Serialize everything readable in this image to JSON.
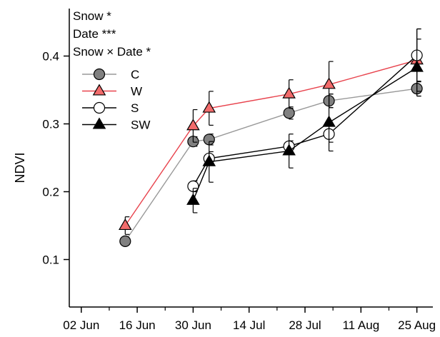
{
  "chart_data": {
    "type": "line",
    "title": "",
    "xlabel": "",
    "ylabel": "NDVI",
    "ylim": [
      0.03,
      0.47
    ],
    "yticks": [
      0.1,
      0.2,
      0.3,
      0.4
    ],
    "ytick_labels": [
      "0.1",
      "0.2",
      "0.3",
      "0.4"
    ],
    "xlim": [
      "2021-05-30",
      "2021-08-29"
    ],
    "xticks": [
      "2021-06-02",
      "2021-06-16",
      "2021-06-30",
      "2021-07-14",
      "2021-07-28",
      "2021-08-11",
      "2021-08-25"
    ],
    "xtick_labels": [
      "02 Jun",
      "16 Jun",
      "30 Jun",
      "14 Jul",
      "28 Jul",
      "11 Aug",
      "25 Aug"
    ],
    "annotations": [
      "Snow *",
      "Date ***",
      "Snow × Date *"
    ],
    "legend_position": "top-left",
    "grid": false,
    "series": [
      {
        "name": "C",
        "color": "#999999",
        "marker": "circle",
        "marker_fill": "#808080",
        "x": [
          "2021-06-13",
          "2021-06-30",
          "2021-07-04",
          "2021-07-24",
          "2021-08-03",
          "2021-08-25"
        ],
        "y": [
          0.127,
          0.274,
          0.277,
          0.316,
          0.334,
          0.352
        ],
        "err": [
          0.005,
          0.007,
          0.008,
          0.009,
          0.01,
          0.011
        ]
      },
      {
        "name": "W",
        "color": "#e8434d",
        "marker": "triangle",
        "marker_fill": "#f26b6b",
        "x": [
          "2021-06-13",
          "2021-06-30",
          "2021-07-04",
          "2021-07-24",
          "2021-08-03",
          "2021-08-25"
        ],
        "y": [
          0.15,
          0.297,
          0.323,
          0.344,
          0.358,
          0.394
        ],
        "err": [
          0.013,
          0.024,
          0.025,
          0.021,
          0.034,
          0.046
        ]
      },
      {
        "name": "S",
        "color": "#000000",
        "marker": "circle",
        "marker_fill": "#ffffff",
        "x": [
          "2021-06-30",
          "2021-07-04",
          "2021-07-24",
          "2021-08-03",
          "2021-08-25"
        ],
        "y": [
          0.208,
          0.249,
          0.267,
          0.285,
          0.401
        ],
        "err": [
          0.008,
          0.01,
          0.008,
          0.012,
          0.039
        ]
      },
      {
        "name": "SW",
        "color": "#000000",
        "marker": "triangle",
        "marker_fill": "#000000",
        "x": [
          "2021-06-30",
          "2021-07-04",
          "2021-07-24",
          "2021-08-03",
          "2021-08-25"
        ],
        "y": [
          0.187,
          0.244,
          0.26,
          0.302,
          0.383
        ],
        "err": [
          0.018,
          0.03,
          0.025,
          0.042,
          0.042
        ]
      }
    ]
  }
}
